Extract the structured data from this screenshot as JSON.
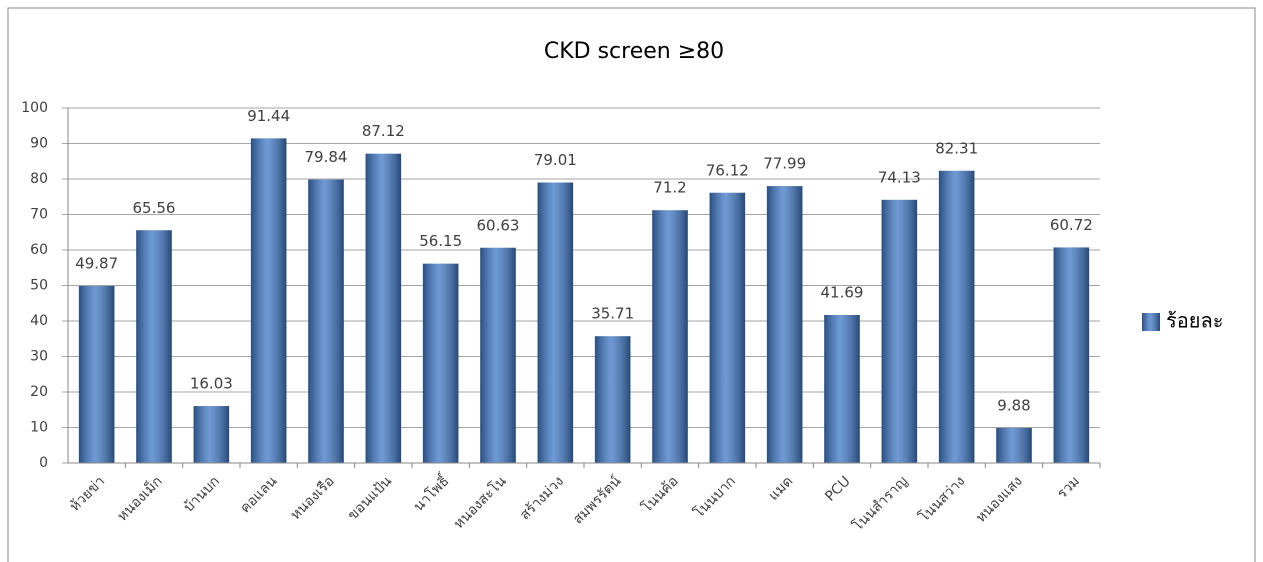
{
  "chart_data": {
    "type": "bar",
    "title": "CKD screen ≥80",
    "categories": [
      "ห้วยข่า",
      "หนองเม็ก",
      "บ้านบก",
      "คอแลน",
      "หนองเรือ",
      "ขอนแป้น",
      "นาโพธิ์",
      "หนองสะโน",
      "สร้างม่วง",
      "สมพรรัตน์",
      "โนนค้อ",
      "โนนบาก",
      "แมด",
      "PCU",
      "โนนสำราญ",
      "โนนสว่าง",
      "หนองแสง",
      "รวม"
    ],
    "series": [
      {
        "name": "ร้อยละ",
        "color": "#3f78c6",
        "values": [
          49.87,
          65.56,
          16.03,
          91.44,
          79.84,
          87.12,
          56.15,
          60.63,
          79.01,
          35.71,
          71.2,
          76.12,
          77.99,
          41.69,
          74.13,
          82.31,
          9.88,
          60.72
        ]
      }
    ],
    "ylim": [
      0,
      100
    ],
    "yticks": [
      0,
      10,
      20,
      30,
      40,
      50,
      60,
      70,
      80,
      90,
      100
    ],
    "grid": true,
    "legend": "right"
  }
}
